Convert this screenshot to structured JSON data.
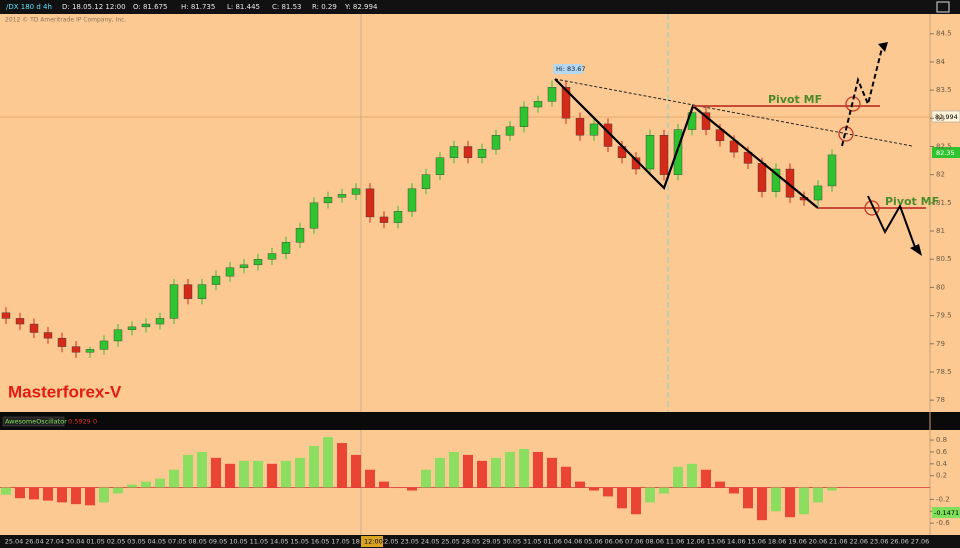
{
  "header": {
    "symbol": "/DX 180 d 4h",
    "date": "D: 18.05.12 12:00",
    "open": "O: 81.675",
    "high": "H: 81.735",
    "low": "L: 81.445",
    "close": "C: 81.53",
    "range": "R: 0.29",
    "y": "Y: 82.994",
    "copyright": "2012 © TD Ameritrade IP Company, Inc."
  },
  "annotations": {
    "hi": "Hi: 83.67",
    "pivot_top": "Pivot MF",
    "pivot_bottom": "Pivot MF",
    "brand": "Masterforex-V",
    "cursor_price": "82.994",
    "last_price": "82.35",
    "cursor_label": "12:00"
  },
  "chart_data": [
    {
      "type": "candlestick",
      "open": [
        79.55,
        79.45,
        79.35,
        79.2,
        79.1,
        78.95,
        78.85,
        78.9,
        79.05,
        79.25,
        79.3,
        79.35,
        79.45,
        80.05,
        79.8,
        80.05,
        80.2,
        80.35,
        80.4,
        80.5,
        80.6,
        80.8,
        81.05,
        81.5,
        81.6,
        81.65,
        81.75,
        81.25,
        81.15,
        81.35,
        81.75,
        82.0,
        82.3,
        82.5,
        82.3,
        82.45,
        82.7,
        82.85,
        83.2,
        83.3,
        83.55,
        83.0,
        82.7,
        82.9,
        82.5,
        82.3,
        82.1,
        82.7,
        82.0,
        82.8,
        83.1,
        82.8,
        82.6,
        82.4,
        82.2,
        81.7,
        82.1,
        81.6,
        81.55,
        81.8
      ],
      "high": [
        79.65,
        79.55,
        79.45,
        79.3,
        79.2,
        79.05,
        78.95,
        79.15,
        79.35,
        79.4,
        79.45,
        79.55,
        80.15,
        80.15,
        80.15,
        80.3,
        80.45,
        80.5,
        80.6,
        80.7,
        80.9,
        81.15,
        81.6,
        81.7,
        81.75,
        81.85,
        81.85,
        81.35,
        81.45,
        81.85,
        82.1,
        82.4,
        82.6,
        82.6,
        82.55,
        82.8,
        82.95,
        83.3,
        83.4,
        83.67,
        83.65,
        83.1,
        83.0,
        83.0,
        82.6,
        82.4,
        82.8,
        82.8,
        82.9,
        83.2,
        83.2,
        82.9,
        82.7,
        82.5,
        82.3,
        82.2,
        82.2,
        81.7,
        81.9,
        82.45
      ],
      "low": [
        79.35,
        79.25,
        79.1,
        79.0,
        78.85,
        78.75,
        78.75,
        78.8,
        78.95,
        79.15,
        79.2,
        79.25,
        79.35,
        79.7,
        79.7,
        79.95,
        80.1,
        80.25,
        80.3,
        80.4,
        80.5,
        80.7,
        80.95,
        81.4,
        81.5,
        81.55,
        81.15,
        81.05,
        81.05,
        81.25,
        81.65,
        81.9,
        82.2,
        82.2,
        82.2,
        82.35,
        82.6,
        82.75,
        83.1,
        83.2,
        82.9,
        82.6,
        82.6,
        82.4,
        82.2,
        82.0,
        82.0,
        81.9,
        81.9,
        82.7,
        82.7,
        82.5,
        82.3,
        82.1,
        81.6,
        81.6,
        81.5,
        81.45,
        81.45,
        81.7
      ],
      "close": [
        79.45,
        79.35,
        79.2,
        79.1,
        78.95,
        78.85,
        78.9,
        79.05,
        79.25,
        79.3,
        79.35,
        79.45,
        80.05,
        79.8,
        80.05,
        80.2,
        80.35,
        80.4,
        80.5,
        80.6,
        80.8,
        81.05,
        81.5,
        81.6,
        81.65,
        81.75,
        81.25,
        81.15,
        81.35,
        81.75,
        82.0,
        82.3,
        82.5,
        82.3,
        82.45,
        82.7,
        82.85,
        83.2,
        83.3,
        83.55,
        83.0,
        82.7,
        82.9,
        82.5,
        82.3,
        82.1,
        82.7,
        82.0,
        82.8,
        83.1,
        82.8,
        82.6,
        82.4,
        82.2,
        81.7,
        82.1,
        81.6,
        81.55,
        81.8,
        82.35
      ],
      "up_color": "#2fc42f",
      "down_color": "#d42a1a",
      "ylim": [
        77.79,
        84.85
      ],
      "yticks": [
        84.5,
        84,
        83.5,
        83,
        82.5,
        82,
        81.5,
        81,
        80.5,
        80,
        79.5,
        79,
        78.5,
        78
      ],
      "xlabels": [
        "25.04",
        "26.04",
        "27.04",
        "30.04",
        "01.05",
        "02.05",
        "03.05",
        "04.05",
        "07.05",
        "08.05",
        "09.05",
        "10.05",
        "11.05",
        "14.05",
        "15.05",
        "16.05",
        "17.05",
        "18.05",
        "22.05",
        "23.05",
        "24.05",
        "25.05",
        "28.05",
        "29.05",
        "30.05",
        "31.05",
        "01.06",
        "04.06",
        "05.06",
        "06.06",
        "07.06",
        "08.06",
        "11.06",
        "12.06",
        "13.06",
        "14.06",
        "15.06",
        "18.06",
        "19.06",
        "20.06",
        "21.06",
        "22.06",
        "23.06",
        "26.06",
        "27.06"
      ]
    },
    {
      "type": "bar",
      "title": "AwesomeOscillator",
      "current": "0.5929",
      "zero": "0",
      "last_label": "-0.1471",
      "values": [
        -0.12,
        -0.18,
        -0.2,
        -0.22,
        -0.25,
        -0.28,
        -0.3,
        -0.25,
        -0.1,
        0.05,
        0.1,
        0.15,
        0.3,
        0.55,
        0.6,
        0.5,
        0.4,
        0.45,
        0.45,
        0.4,
        0.45,
        0.5,
        0.7,
        0.85,
        0.75,
        0.55,
        0.3,
        0.1,
        0,
        -0.05,
        0.3,
        0.5,
        0.6,
        0.55,
        0.45,
        0.5,
        0.6,
        0.65,
        0.6,
        0.5,
        0.35,
        0.1,
        -0.05,
        -0.15,
        -0.35,
        -0.45,
        -0.25,
        -0.1,
        0.35,
        0.4,
        0.3,
        0.1,
        -0.1,
        -0.35,
        -0.55,
        -0.4,
        -0.5,
        -0.45,
        -0.25,
        -0.05
      ],
      "up_color": "#7ee05a",
      "down_color": "#e8352a",
      "ylim": [
        -0.8,
        0.97
      ],
      "yticks": [
        0.8,
        0.6,
        0.4,
        0.2,
        -0.2,
        -0.4,
        -0.6
      ]
    }
  ]
}
